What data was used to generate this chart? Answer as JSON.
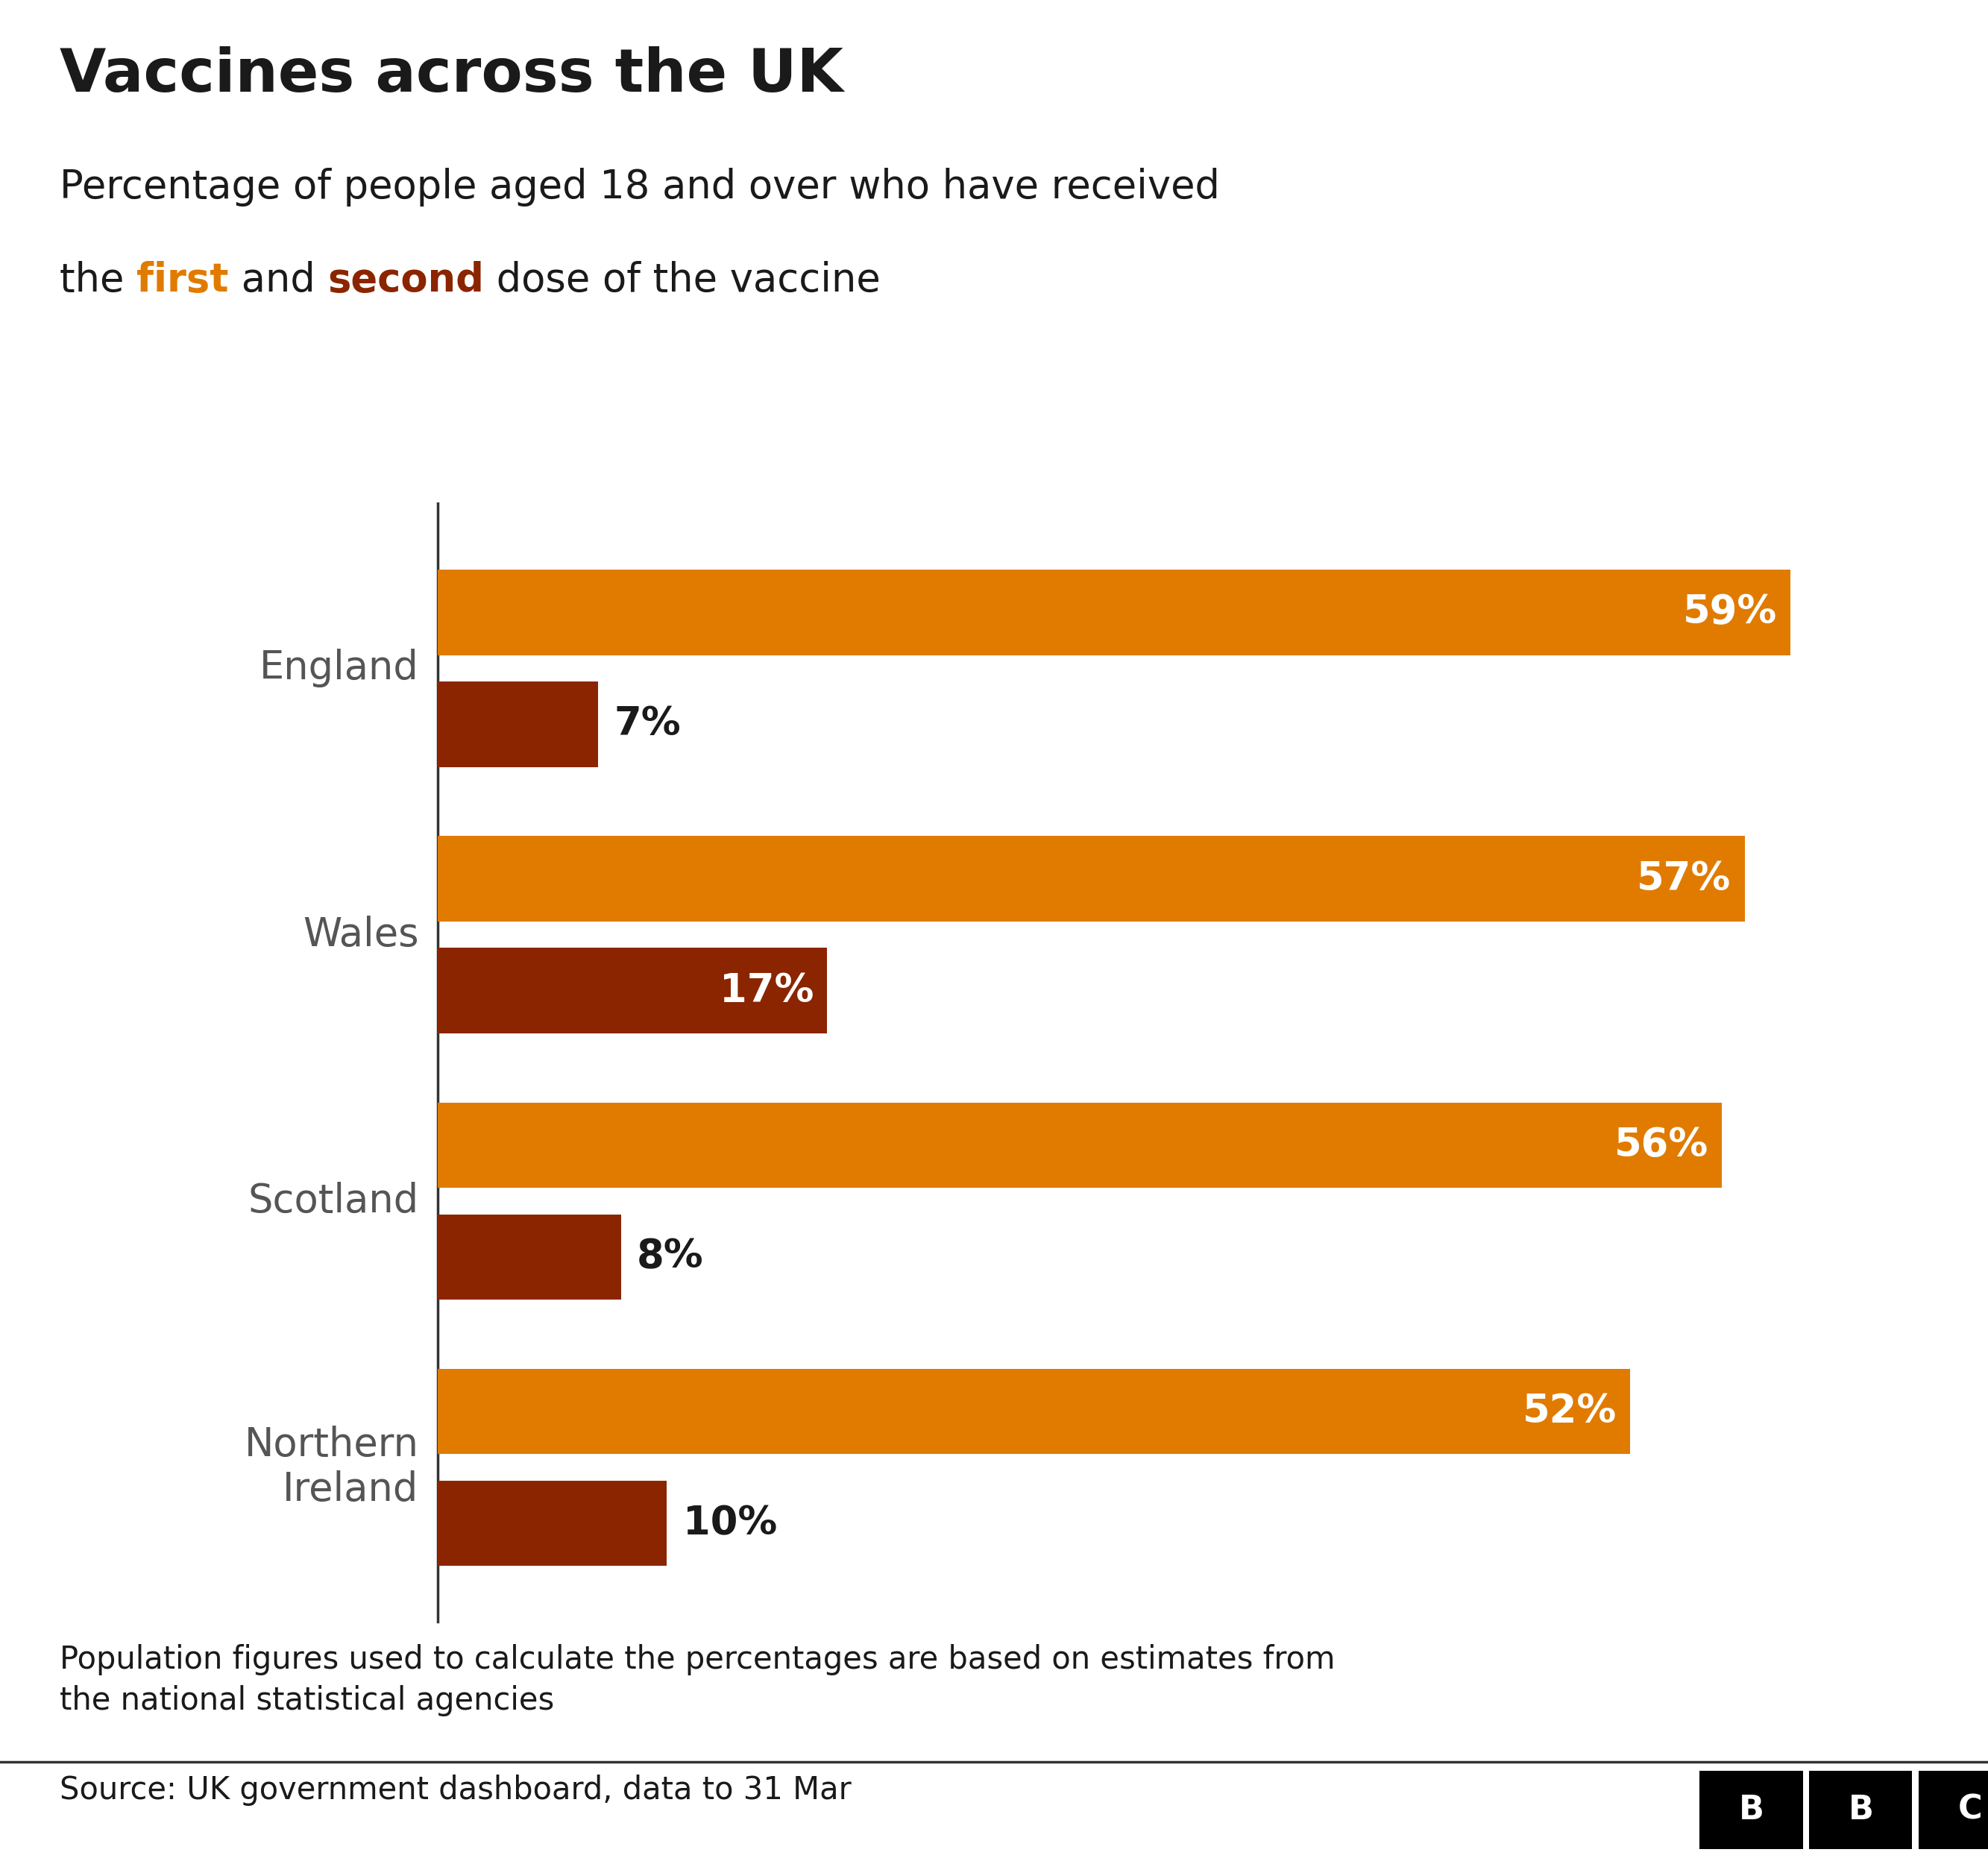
{
  "title": "Vaccines across the UK",
  "subtitle_line1": "Percentage of people aged 18 and over who have received",
  "subtitle_line2_parts": [
    {
      "text": "the ",
      "color": "#1a1a1a",
      "bold": false
    },
    {
      "text": "first",
      "color": "#e07b00",
      "bold": true
    },
    {
      "text": " and ",
      "color": "#1a1a1a",
      "bold": false
    },
    {
      "text": "second",
      "color": "#8b2500",
      "bold": true
    },
    {
      "text": " dose of the vaccine",
      "color": "#1a1a1a",
      "bold": false
    }
  ],
  "nations": [
    "England",
    "Wales",
    "Scotland",
    "Northern\nIreland"
  ],
  "first_dose": [
    59,
    57,
    56,
    52
  ],
  "second_dose": [
    7,
    17,
    8,
    10
  ],
  "first_dose_color": "#e07b00",
  "second_dose_color": "#8b2500",
  "note": "Population figures used to calculate the percentages are based on estimates from\nthe national statistical agencies",
  "source": "Source: UK government dashboard, data to 31 Mar",
  "background_color": "#ffffff",
  "title_fontsize": 58,
  "subtitle_fontsize": 38,
  "label_fontsize": 38,
  "nation_fontsize": 38,
  "note_fontsize": 30,
  "source_fontsize": 30,
  "xlim": [
    0,
    65
  ]
}
